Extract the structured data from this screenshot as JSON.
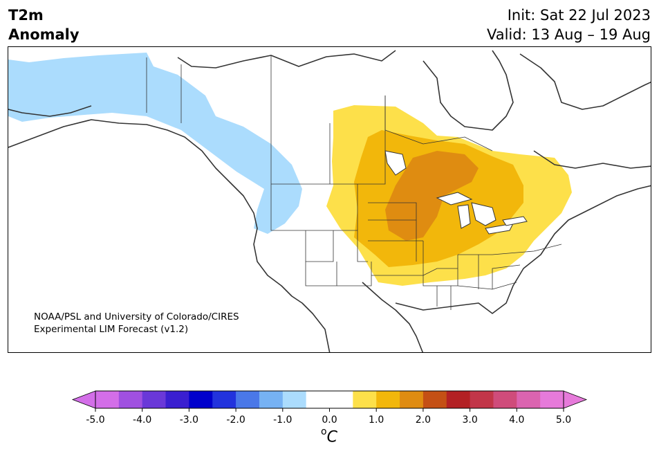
{
  "title": {
    "line1": "T2m",
    "line2": "Anomaly"
  },
  "header_right": {
    "init": "Init: Sat 22 Jul 2023",
    "valid": "Valid: 13 Aug – 19 Aug"
  },
  "credit": {
    "line1": "NOAA/PSL and University of Colorado/CIRES",
    "line2": "Experimental LIM Forecast (v1.2)"
  },
  "map": {
    "region": "North America",
    "variable": "2 m temperature anomaly",
    "anomaly_regions": [
      {
        "label": "Alaska / Yukon / British Columbia coast",
        "level": "-1.0 to -0.5",
        "color": "#abdcfd"
      },
      {
        "label": "Central Plains to Northeast",
        "level": "0.5 to 1.0",
        "color": "#fde04a"
      },
      {
        "label": "Upper Midwest / Great Plains",
        "level": "1.0 to 1.5",
        "color": "#f2b70b"
      },
      {
        "label": "Minnesota / Iowa / Western Ontario",
        "level": "1.5 to 2.0",
        "color": "#df8c11"
      }
    ]
  },
  "colorbar": {
    "unit_base": "C",
    "unit_sup": "o",
    "ticks": [
      "-5.0",
      "-4.0",
      "-3.0",
      "-2.0",
      "-1.0",
      "0.0",
      "1.0",
      "2.0",
      "3.0",
      "4.0",
      "5.0"
    ],
    "colors": [
      "#d36ee8",
      "#a050e0",
      "#6a38d8",
      "#3a1fd0",
      "#0000cc",
      "#2233dd",
      "#4a78e8",
      "#76b2f3",
      "#abdcfd",
      "#ffffff",
      "#ffffff",
      "#fde04a",
      "#f2b70b",
      "#df8c11",
      "#c45015",
      "#b32124",
      "#c23649",
      "#cf4c7b",
      "#db64b0",
      "#e67ada"
    ],
    "under_color": "#d36ee8",
    "over_color": "#e67ada"
  }
}
